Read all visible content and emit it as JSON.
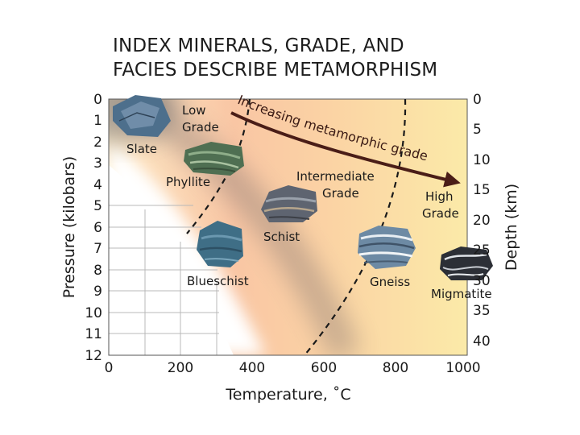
{
  "title": {
    "line1": "INDEX MINERALS, GRADE, AND",
    "line2": "FACIES DESCRIBE METAMORPHISM"
  },
  "axes": {
    "x_label": "Temperature, ˚C",
    "y_left_label": "Pressure (kilobars)",
    "y_right_label": "Depth (km)",
    "x_ticks": [
      "0",
      "200",
      "400",
      "600",
      "800",
      "1000"
    ],
    "y_left_ticks": [
      "0",
      "1",
      "2",
      "3",
      "4",
      "5",
      "6",
      "7",
      "8",
      "9",
      "10",
      "11",
      "12"
    ],
    "y_right_ticks": [
      "0",
      "5",
      "10",
      "15",
      "20",
      "25",
      "30",
      "35",
      "40"
    ]
  },
  "grade_labels": {
    "low": [
      "Low",
      "Grade"
    ],
    "intermediate": [
      "Intermediate",
      "Grade"
    ],
    "high": [
      "High",
      "Grade"
    ]
  },
  "arrow_label": "Increasing metamorphic grade",
  "rocks": {
    "slate": "Slate",
    "phyllite": "Phyllite",
    "schist": "Schist",
    "blueschist": "Blueschist",
    "gneiss": "Gneiss",
    "migmatite": "Migmatite"
  },
  "colors": {
    "arrow": "#4a1d17",
    "warm_high": "#f6a06a",
    "warm_low": "#fbe6a8",
    "shadow": "#7a6a66"
  }
}
